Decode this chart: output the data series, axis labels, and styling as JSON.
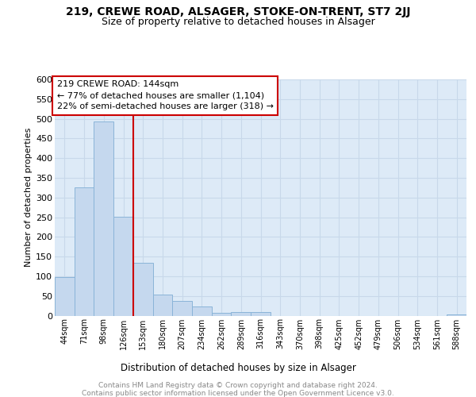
{
  "title1": "219, CREWE ROAD, ALSAGER, STOKE-ON-TRENT, ST7 2JJ",
  "title2": "Size of property relative to detached houses in Alsager",
  "xlabel": "Distribution of detached houses by size in Alsager",
  "ylabel": "Number of detached properties",
  "categories": [
    "44sqm",
    "71sqm",
    "98sqm",
    "126sqm",
    "153sqm",
    "180sqm",
    "207sqm",
    "234sqm",
    "262sqm",
    "289sqm",
    "316sqm",
    "343sqm",
    "370sqm",
    "398sqm",
    "425sqm",
    "452sqm",
    "479sqm",
    "506sqm",
    "534sqm",
    "561sqm",
    "588sqm"
  ],
  "values": [
    97,
    325,
    493,
    252,
    135,
    53,
    37,
    24,
    7,
    10,
    10,
    0,
    0,
    0,
    0,
    0,
    0,
    0,
    0,
    0,
    3
  ],
  "bar_color": "#c5d8ee",
  "bar_edge_color": "#8ab4d8",
  "redline_index": 4,
  "annotation_title": "219 CREWE ROAD: 144sqm",
  "annotation_line1": "← 77% of detached houses are smaller (1,104)",
  "annotation_line2": "22% of semi-detached houses are larger (318) →",
  "annotation_box_facecolor": "#ffffff",
  "annotation_box_edgecolor": "#cc0000",
  "ylim": [
    0,
    600
  ],
  "yticks": [
    0,
    50,
    100,
    150,
    200,
    250,
    300,
    350,
    400,
    450,
    500,
    550,
    600
  ],
  "footer1": "Contains HM Land Registry data © Crown copyright and database right 2024.",
  "footer2": "Contains public sector information licensed under the Open Government Licence v3.0.",
  "fig_facecolor": "#ffffff",
  "plot_facecolor": "#ddeaf7",
  "grid_color": "#c8d8ea"
}
